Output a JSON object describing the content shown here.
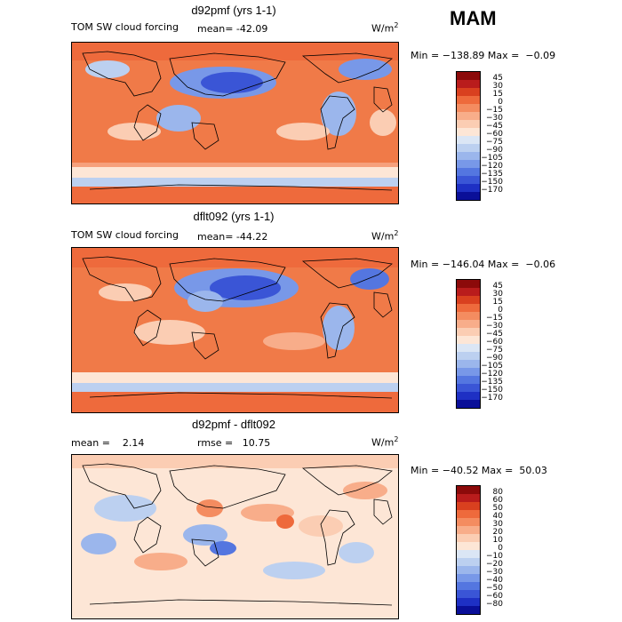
{
  "season": "MAM",
  "panels": [
    {
      "title": "d92pmf (yrs 1-1)",
      "left_label": "TOM SW cloud forcing",
      "mean_label": "mean= -42.09",
      "units": "W/m",
      "units_sup": "2",
      "minmax": "Min = −138.89 Max =  −0.09",
      "colorbar_labels": [
        "45",
        "30",
        "15",
        "0",
        "−15",
        "−30",
        "−45",
        "−60",
        "−75",
        "−90",
        "−105",
        "−120",
        "−135",
        "−150",
        "−170"
      ],
      "colorbar_colors": [
        "#8c0a0a",
        "#b91c1c",
        "#d9401f",
        "#ee6a3c",
        "#f48c60",
        "#f8ad8a",
        "#fbcdb3",
        "#fde6d6",
        "#dbe6f5",
        "#bcd0f0",
        "#9bb6ec",
        "#7898e8",
        "#5476e0",
        "#3a55d6",
        "#1e30c4",
        "#0a0f98"
      ]
    },
    {
      "title": "dflt092 (yrs 1-1)",
      "left_label": "TOM SW cloud forcing",
      "mean_label": "mean= -44.22",
      "units": "W/m",
      "units_sup": "2",
      "minmax": "Min = −146.04 Max =  −0.06",
      "colorbar_labels": [
        "45",
        "30",
        "15",
        "0",
        "−15",
        "−30",
        "−45",
        "−60",
        "−75",
        "−90",
        "−105",
        "−120",
        "−135",
        "−150",
        "−170"
      ],
      "colorbar_colors": [
        "#8c0a0a",
        "#b91c1c",
        "#d9401f",
        "#ee6a3c",
        "#f48c60",
        "#f8ad8a",
        "#fbcdb3",
        "#fde6d6",
        "#dbe6f5",
        "#bcd0f0",
        "#9bb6ec",
        "#7898e8",
        "#5476e0",
        "#3a55d6",
        "#1e30c4",
        "#0a0f98"
      ]
    },
    {
      "title": "d92pmf - dflt092",
      "left_label": "mean =    2.14",
      "mean_label": "rmse =   10.75",
      "units": "W/m",
      "units_sup": "2",
      "minmax": "Min = −40.52 Max =  50.03",
      "colorbar_labels": [
        "80",
        "60",
        "50",
        "40",
        "30",
        "20",
        "10",
        "0",
        "−10",
        "−20",
        "−30",
        "−40",
        "−50",
        "−60",
        "−80"
      ],
      "colorbar_colors": [
        "#8c0a0a",
        "#b91c1c",
        "#d9401f",
        "#ee6a3c",
        "#f48c60",
        "#f8ad8a",
        "#fbcdb3",
        "#fde6d6",
        "#dbe6f5",
        "#bcd0f0",
        "#9bb6ec",
        "#7898e8",
        "#5476e0",
        "#3a55d6",
        "#1e30c4",
        "#0a0f98"
      ]
    }
  ],
  "chart_data": [
    {
      "type": "heatmap",
      "title": "d92pmf (yrs 1-1)",
      "field": "TOM SW cloud forcing",
      "mean": -42.09,
      "min": -138.89,
      "max": -0.09,
      "units": "W/m2",
      "levels": [
        45,
        30,
        15,
        0,
        -15,
        -30,
        -45,
        -60,
        -75,
        -90,
        -105,
        -120,
        -135,
        -150,
        -170
      ]
    },
    {
      "type": "heatmap",
      "title": "dflt092 (yrs 1-1)",
      "field": "TOM SW cloud forcing",
      "mean": -44.22,
      "min": -146.04,
      "max": -0.06,
      "units": "W/m2",
      "levels": [
        45,
        30,
        15,
        0,
        -15,
        -30,
        -45,
        -60,
        -75,
        -90,
        -105,
        -120,
        -135,
        -150,
        -170
      ]
    },
    {
      "type": "heatmap",
      "title": "d92pmf - dflt092",
      "mean": 2.14,
      "rmse": 10.75,
      "min": -40.52,
      "max": 50.03,
      "units": "W/m2",
      "levels": [
        80,
        60,
        50,
        40,
        30,
        20,
        10,
        0,
        -10,
        -20,
        -30,
        -40,
        -50,
        -60,
        -80
      ]
    }
  ]
}
